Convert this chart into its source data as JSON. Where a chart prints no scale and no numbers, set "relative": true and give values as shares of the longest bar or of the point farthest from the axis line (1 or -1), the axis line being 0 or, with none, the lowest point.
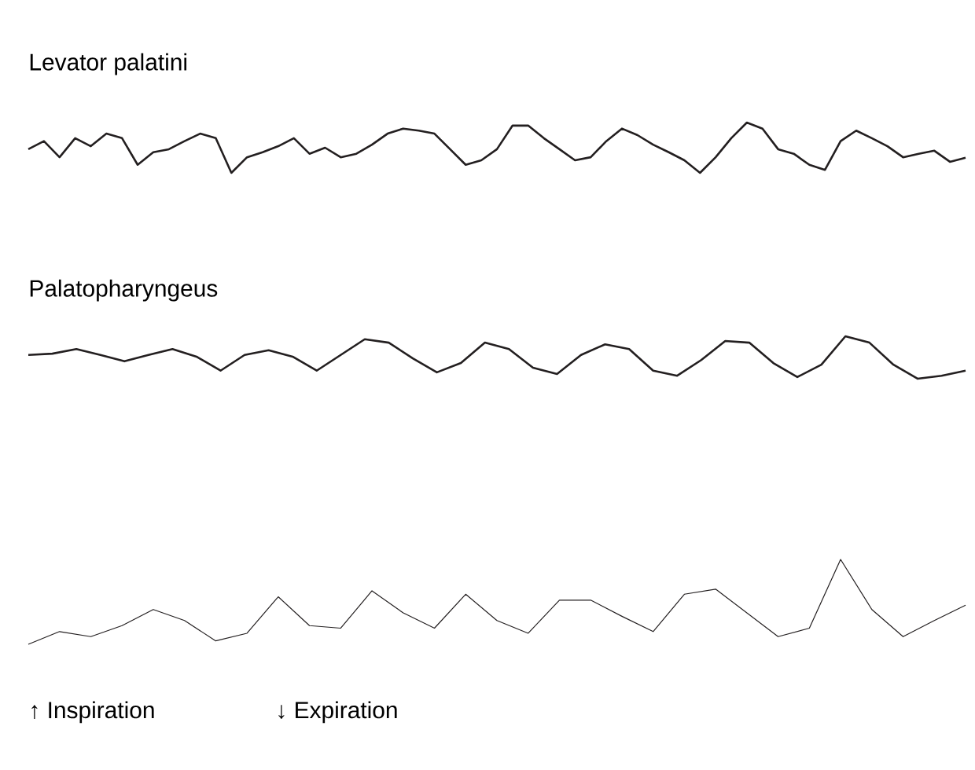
{
  "chart_data": [
    {
      "type": "line",
      "title": "Levator palatini",
      "relative": true,
      "categories": [
        null,
        null,
        null,
        null,
        null,
        null,
        null,
        null,
        null,
        null,
        null,
        null,
        null,
        null,
        null,
        null,
        null,
        null,
        null,
        null,
        null,
        null,
        null,
        null,
        null,
        null,
        null,
        null,
        null,
        null,
        null,
        null,
        null,
        null,
        null,
        null,
        null,
        null,
        null,
        null,
        null,
        null,
        null,
        null,
        null,
        null,
        null,
        null,
        null,
        null,
        null,
        null,
        null,
        null,
        null,
        null,
        null,
        null,
        null,
        null,
        null
      ],
      "series": [
        {
          "color": "#231f20",
          "values": [
            0.47,
            0.63,
            0.31,
            0.69,
            0.53,
            0.78,
            0.69,
            0.16,
            0.41,
            0.47,
            0.63,
            0.78,
            0.69,
            0,
            0.31,
            0.41,
            0.53,
            0.69,
            0.38,
            0.5,
            0.31,
            0.38,
            0.56,
            0.78,
            0.88,
            0.84,
            0.78,
            0.47,
            0.16,
            0.25,
            0.47,
            0.94,
            0.94,
            0.69,
            0.47,
            0.25,
            0.31,
            0.63,
            0.88,
            0.75,
            0.56,
            0.41,
            0.25,
            0,
            0.31,
            0.69,
            1,
            0.88,
            0.47,
            0.38,
            0.16,
            0.06,
            0.63,
            0.84,
            0.69,
            0.53,
            0.31,
            0.38,
            0.44,
            0.22,
            0.3
          ]
        }
      ]
    },
    {
      "type": "line",
      "title": "Palatopharyngeus",
      "relative": true,
      "categories": [
        null,
        null,
        null,
        null,
        null,
        null,
        null,
        null,
        null,
        null,
        null,
        null,
        null,
        null,
        null,
        null,
        null,
        null,
        null,
        null,
        null,
        null,
        null,
        null,
        null,
        null,
        null,
        null,
        null,
        null,
        null,
        null,
        null,
        null,
        null,
        null,
        null,
        null,
        null,
        null
      ],
      "series": [
        {
          "color": "#231f20",
          "values": [
            0.56,
            0.59,
            0.7,
            0.56,
            0.41,
            0.56,
            0.7,
            0.52,
            0.19,
            0.56,
            0.67,
            0.52,
            0.19,
            0.56,
            0.93,
            0.85,
            0.48,
            0.15,
            0.37,
            0.85,
            0.7,
            0.26,
            0.11,
            0.56,
            0.81,
            0.7,
            0.19,
            0.07,
            0.44,
            0.89,
            0.85,
            0.37,
            0.04,
            0.33,
            1,
            0.85,
            0.33,
            0,
            0.07,
            0.19
          ]
        }
      ]
    },
    {
      "type": "line",
      "relative": true,
      "categories": [
        null,
        null,
        null,
        null,
        null,
        null,
        null,
        null,
        null,
        null,
        null,
        null,
        null,
        null,
        null,
        null,
        null,
        null,
        null,
        null,
        null,
        null,
        null,
        null,
        null,
        null,
        null,
        null,
        null,
        null,
        null
      ],
      "series": [
        {
          "color": "#231f20",
          "values": [
            0,
            0.15,
            0.09,
            0.22,
            0.41,
            0.28,
            0.04,
            0.13,
            0.56,
            0.22,
            0.19,
            0.63,
            0.37,
            0.19,
            0.59,
            0.28,
            0.13,
            0.52,
            0.52,
            0.33,
            0.15,
            0.59,
            0.65,
            0.37,
            0.09,
            0.19,
            1,
            0.41,
            0.09,
            0.28,
            0.46
          ]
        }
      ],
      "annotations": [
        "↑ Inspiration",
        "↓ Expiration"
      ]
    }
  ]
}
